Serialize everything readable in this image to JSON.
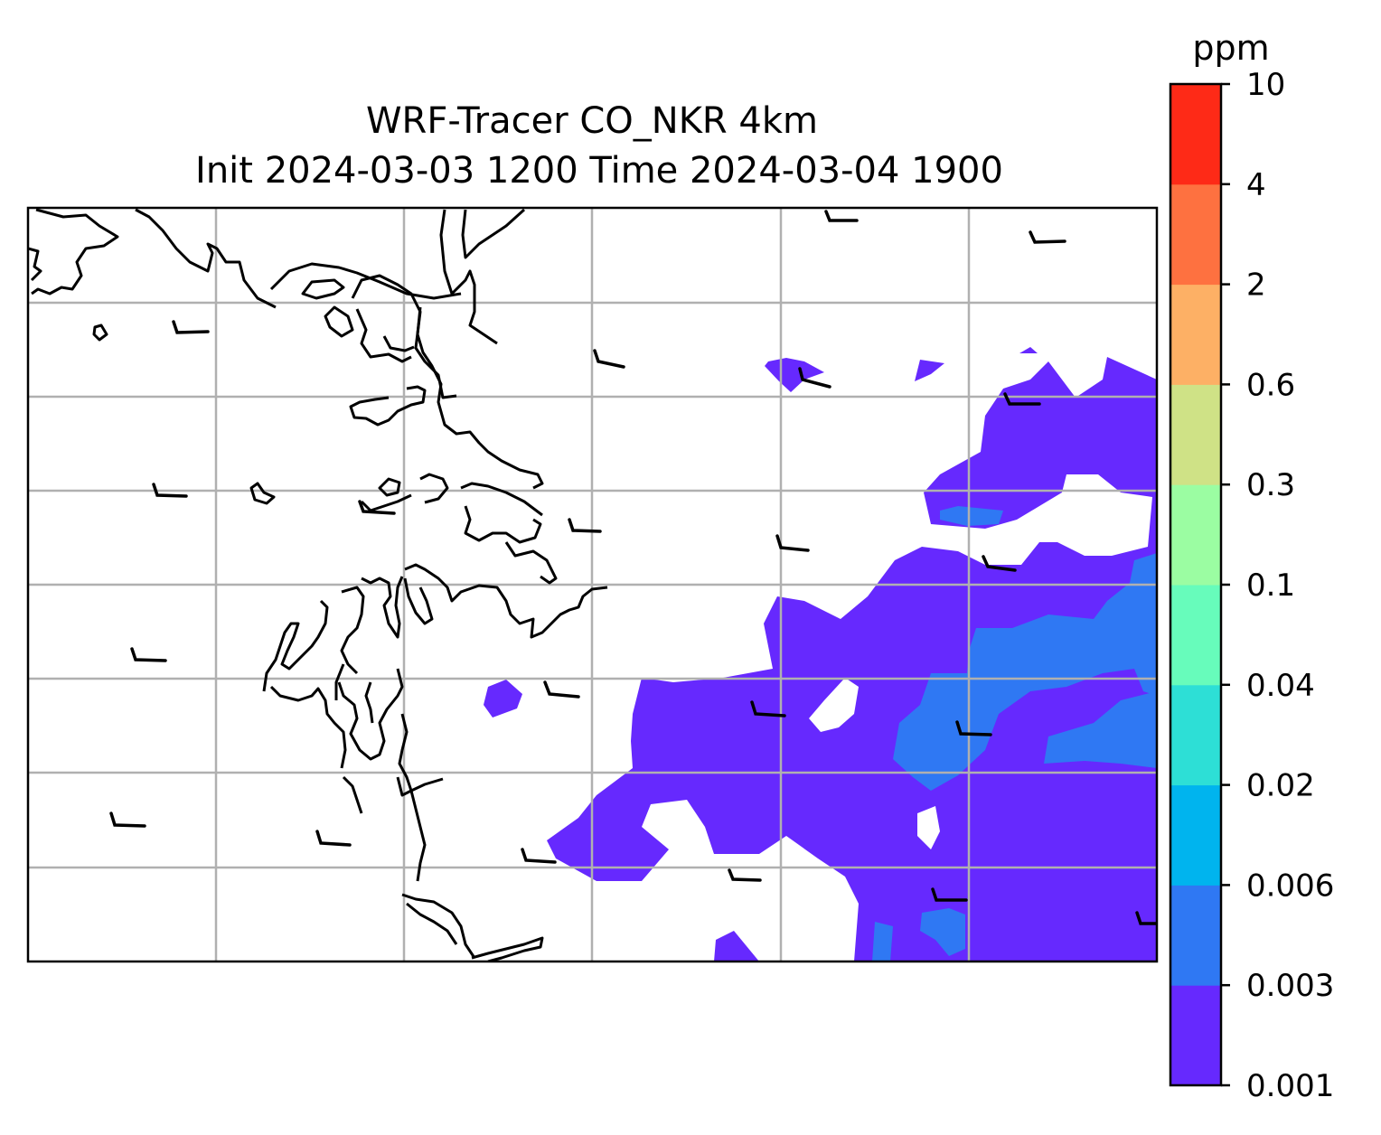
{
  "title": {
    "line1": "WRF-Tracer CO_NKR 4km",
    "line2": "Init 2024-03-03 1200 Time 2024-03-04 1900"
  },
  "colorbar": {
    "unit": "ppm",
    "levels": [
      "0.001",
      "0.003",
      "0.006",
      "0.02",
      "0.04",
      "0.1",
      "0.3",
      "0.6",
      "2",
      "4",
      "10"
    ],
    "colors": [
      "#6629fe",
      "#2f78f3",
      "#00b4ee",
      "#2ddfd6",
      "#67fcbb",
      "#9bfda2",
      "#cfe286",
      "#fdb065",
      "#fe7140",
      "#fe2a17"
    ]
  },
  "map": {
    "fill_colors": {
      "low": "#6629fe",
      "mid": "#2f78f3"
    },
    "grid_color": "#b0b0b0",
    "coast_color": "#000000",
    "barb_color": "#000000"
  },
  "chart_data": {
    "type": "heatmap",
    "title": "WRF-Tracer CO_NKR 4km Init 2024-03-03 1200 Time 2024-03-04 1900",
    "colorbar_label": "ppm",
    "levels": [
      0.001,
      0.003,
      0.006,
      0.02,
      0.04,
      0.1,
      0.3,
      0.6,
      2,
      4,
      10
    ],
    "grid": true
  }
}
